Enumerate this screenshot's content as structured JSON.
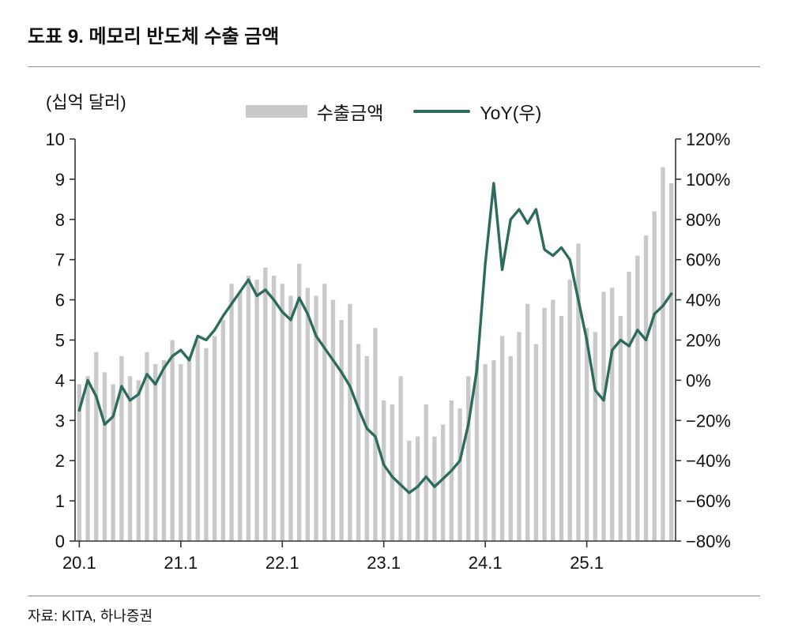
{
  "header": {
    "title": "도표 9. 메모리 반도체 수출 금액"
  },
  "footer": {
    "source": "자료: KITA, 하나증권"
  },
  "chart_data": {
    "type": "bar",
    "subtype": "bar+line combo",
    "unit_label": "(십억 달러)",
    "legend": [
      {
        "label": "수출금액",
        "type": "bar",
        "color": "#c9c9c9"
      },
      {
        "label": "YoY(우)",
        "type": "line",
        "color": "#2d6b5e"
      }
    ],
    "left_axis": {
      "min": 0,
      "max": 10,
      "step": 1
    },
    "right_axis": {
      "min": -80,
      "max": 120,
      "step": 20,
      "suffix": "%"
    },
    "x_ticks": [
      "20.1",
      "21.1",
      "22.1",
      "23.1",
      "24.1",
      "25.1"
    ],
    "x_tick_indices": [
      0,
      12,
      24,
      36,
      48,
      60
    ],
    "months": [
      "20.1",
      "20.2",
      "20.3",
      "20.4",
      "20.5",
      "20.6",
      "20.7",
      "20.8",
      "20.9",
      "20.10",
      "20.11",
      "20.12",
      "21.1",
      "21.2",
      "21.3",
      "21.4",
      "21.5",
      "21.6",
      "21.7",
      "21.8",
      "21.9",
      "21.10",
      "21.11",
      "21.12",
      "22.1",
      "22.2",
      "22.3",
      "22.4",
      "22.5",
      "22.6",
      "22.7",
      "22.8",
      "22.9",
      "22.10",
      "22.11",
      "22.12",
      "23.1",
      "23.2",
      "23.3",
      "23.4",
      "23.5",
      "23.6",
      "23.7",
      "23.8",
      "23.9",
      "23.10",
      "23.11",
      "23.12",
      "24.1",
      "24.2",
      "24.3",
      "24.4",
      "24.5",
      "24.6",
      "24.7",
      "24.8",
      "24.9",
      "24.10",
      "24.11",
      "24.12",
      "25.1",
      "25.2",
      "25.3",
      "25.4",
      "25.5",
      "25.6",
      "25.7",
      "25.8",
      "25.9",
      "25.10",
      "25.11"
    ],
    "series": [
      {
        "name": "수출금액",
        "axis": "left",
        "values": [
          3.9,
          4.1,
          4.7,
          4.2,
          3.9,
          4.6,
          4.1,
          4.0,
          4.7,
          4.4,
          4.5,
          5.0,
          4.4,
          4.6,
          5.0,
          4.8,
          5.1,
          5.5,
          6.4,
          6.2,
          6.6,
          6.5,
          6.8,
          6.6,
          6.4,
          6.1,
          6.9,
          6.3,
          6.1,
          6.4,
          6.0,
          5.5,
          5.9,
          4.9,
          4.6,
          5.3,
          3.5,
          3.4,
          4.1,
          2.5,
          2.6,
          3.4,
          2.6,
          2.9,
          3.5,
          3.3,
          4.1,
          4.5,
          4.4,
          4.5,
          5.1,
          4.6,
          5.2,
          5.9,
          4.9,
          5.8,
          6.0,
          5.6,
          6.5,
          7.4,
          5.3,
          5.2,
          6.2,
          6.3,
          5.6,
          6.7,
          7.1,
          7.6,
          8.2,
          9.3,
          8.9
        ]
      },
      {
        "name": "YoY(우)",
        "axis": "right",
        "values": [
          -15,
          0,
          -8,
          -22,
          -18,
          -3,
          -10,
          -7,
          3,
          -2,
          6,
          12,
          15,
          10,
          22,
          20,
          25,
          32,
          38,
          44,
          50,
          42,
          45,
          40,
          34,
          30,
          41,
          33,
          22,
          16,
          10,
          4,
          -3,
          -14,
          -24,
          -28,
          -42,
          -48,
          -52,
          -56,
          -53,
          -48,
          -53,
          -49,
          -45,
          -40,
          -22,
          5,
          58,
          98,
          55,
          80,
          85,
          78,
          85,
          65,
          62,
          66,
          60,
          40,
          20,
          -5,
          -10,
          15,
          20,
          17,
          25,
          20,
          33,
          37,
          43
        ]
      }
    ],
    "colors": {
      "bar": "#c9c9c9",
      "line": "#2d6b5e",
      "axis": "#333333"
    },
    "grid": "off",
    "legend_position": "top-center"
  }
}
